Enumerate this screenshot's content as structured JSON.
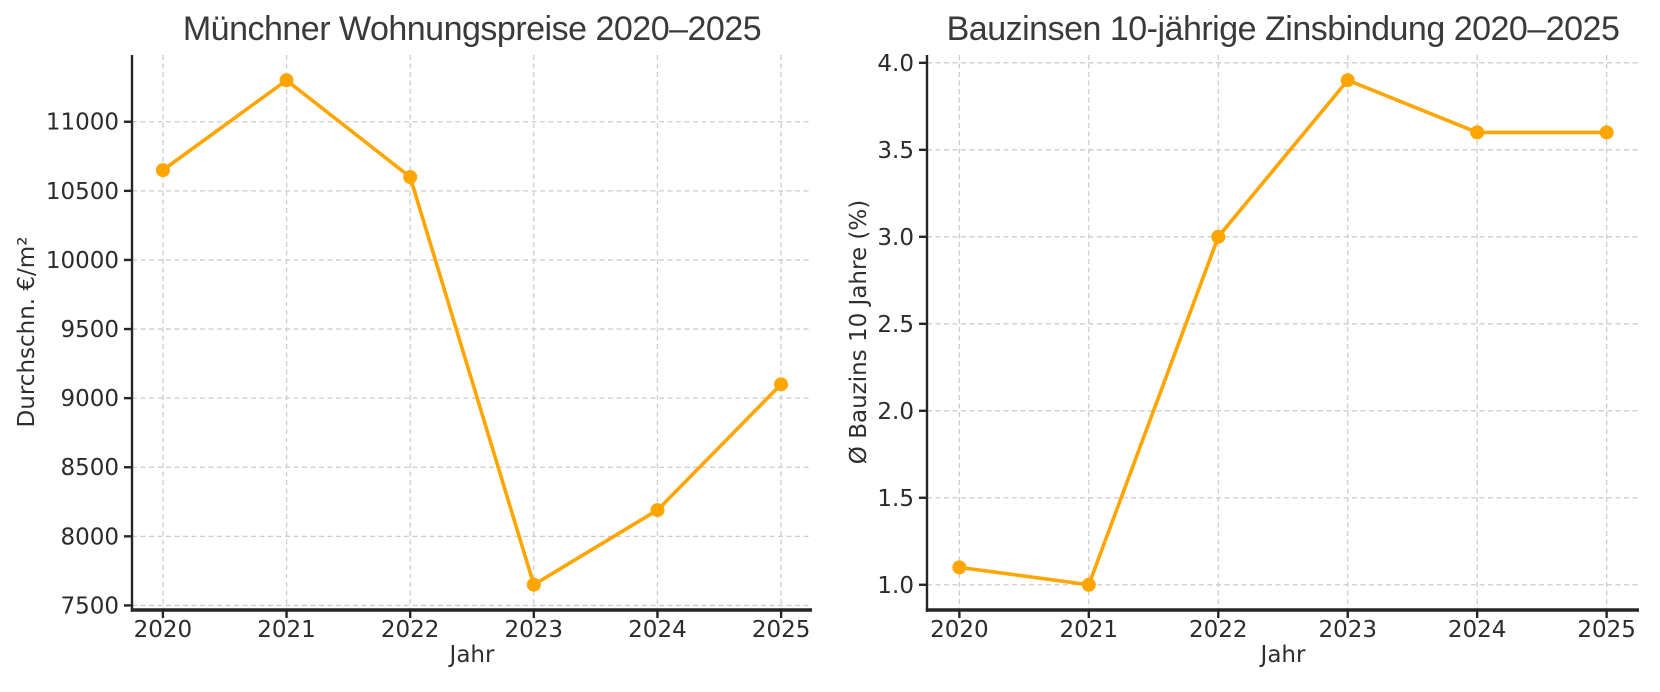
{
  "page": {
    "background": "#ffffff"
  },
  "colors": {
    "series_line": "#FFA500",
    "marker": "#FFA500",
    "grid": "#cccccc",
    "spine": "#262626",
    "title_text": "#3a3a3a",
    "tick_text": "#2b2b2b"
  },
  "chart_data": [
    {
      "type": "line",
      "title": "Münchner Wohnungspreise 2020–2025",
      "xlabel": "Jahr",
      "ylabel": "Durchschn. €/m²",
      "x": [
        2020,
        2021,
        2022,
        2023,
        2024,
        2025
      ],
      "values": [
        10650,
        11300,
        10600,
        7650,
        8190,
        9100
      ],
      "xticks": [
        2020,
        2021,
        2022,
        2023,
        2024,
        2025
      ],
      "xtick_labels": [
        "2020",
        "2021",
        "2022",
        "2023",
        "2024",
        "2025"
      ],
      "yticks": [
        7500,
        8000,
        8500,
        9000,
        9500,
        10000,
        10500,
        11000
      ],
      "ytick_labels": [
        "7500",
        "8000",
        "8500",
        "9000",
        "9500",
        "10000",
        "10500",
        "11000"
      ],
      "xlim": [
        2019.75,
        2025.25
      ],
      "ylim": [
        7467,
        11483
      ],
      "grid": true,
      "legend": false,
      "marker": "circle",
      "line_color": "#FFA500"
    },
    {
      "type": "line",
      "title": "Bauzinsen 10-jährige Zinsbindung 2020–2025",
      "xlabel": "Jahr",
      "ylabel": "Ø Bauzins 10 Jahre (%)",
      "x": [
        2020,
        2021,
        2022,
        2023,
        2024,
        2025
      ],
      "values": [
        1.1,
        1.0,
        3.0,
        3.9,
        3.6,
        3.6
      ],
      "xticks": [
        2020,
        2021,
        2022,
        2023,
        2024,
        2025
      ],
      "xtick_labels": [
        "2020",
        "2021",
        "2022",
        "2023",
        "2024",
        "2025"
      ],
      "yticks": [
        1.0,
        1.5,
        2.0,
        2.5,
        3.0,
        3.5,
        4.0
      ],
      "ytick_labels": [
        "1.0",
        "1.5",
        "2.0",
        "2.5",
        "3.0",
        "3.5",
        "4.0"
      ],
      "xlim": [
        2019.75,
        2025.25
      ],
      "ylim": [
        0.855,
        4.045
      ],
      "grid": true,
      "legend": false,
      "marker": "circle",
      "line_color": "#FFA500"
    }
  ]
}
